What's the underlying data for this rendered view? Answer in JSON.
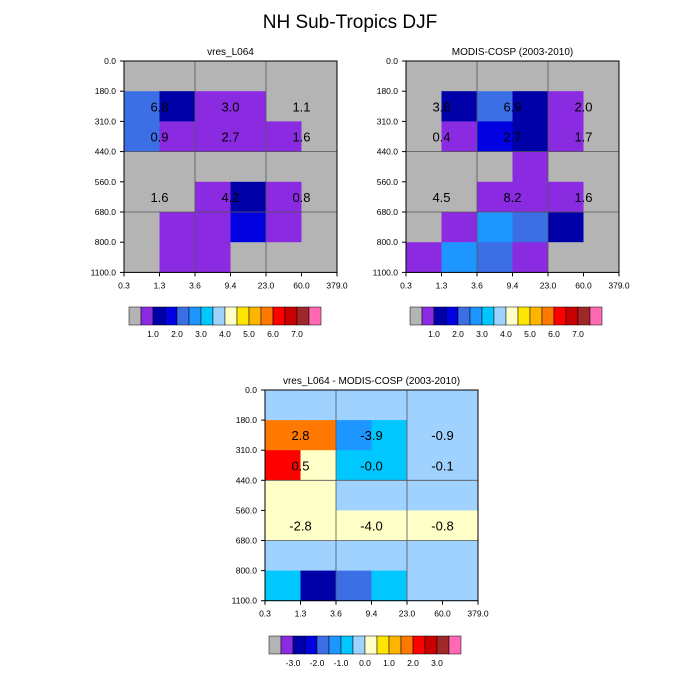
{
  "page_title": "NH Sub-Tropics DJF",
  "palette": [
    "#b4b4b4",
    "#8a2be2",
    "#0000a8",
    "#0000e0",
    "#3c6ee6",
    "#1e96ff",
    "#00c8ff",
    "#a0d2ff",
    "#ffffc8",
    "#ffe600",
    "#ffb400",
    "#ff7800",
    "#ff0000",
    "#c80000",
    "#a02828",
    "#ff69b4"
  ],
  "chart_data": [
    {
      "type": "heatmap",
      "title": "vres_L064",
      "x_ticks": [
        "0.3",
        "1.3",
        "3.6",
        "9.4",
        "23.0",
        "60.0",
        "379.0"
      ],
      "y_ticks": [
        "0.0",
        "180.0",
        "310.0",
        "440.0",
        "560.0",
        "680.0",
        "800.0",
        "1100.0"
      ],
      "grid": true,
      "cells": [
        [
          0,
          0,
          0,
          0,
          0,
          0
        ],
        [
          4,
          2,
          1,
          1,
          0,
          0
        ],
        [
          4,
          1,
          1,
          1,
          1,
          0
        ],
        [
          0,
          0,
          0,
          0,
          0,
          0
        ],
        [
          0,
          0,
          1,
          2,
          1,
          0
        ],
        [
          0,
          1,
          1,
          3,
          1,
          0
        ],
        [
          0,
          1,
          1,
          0,
          0,
          0
        ]
      ],
      "labels": [
        "6.8",
        "3.0",
        "1.1",
        "0.9",
        "2.7",
        "1.6",
        "1.6",
        "4.2",
        "0.8"
      ],
      "colorbar": {
        "labels": [
          "1.0",
          "2.0",
          "3.0",
          "4.0",
          "5.0",
          "6.0",
          "7.0"
        ],
        "from": 0
      }
    },
    {
      "type": "heatmap",
      "title": "MODIS-COSP (2003-2010)",
      "x_ticks": [
        "0.3",
        "1.3",
        "3.6",
        "9.4",
        "23.0",
        "60.0",
        "379.0"
      ],
      "y_ticks": [
        "0.0",
        "180.0",
        "310.0",
        "440.0",
        "560.0",
        "680.0",
        "800.0",
        "1100.0"
      ],
      "grid": true,
      "cells": [
        [
          0,
          0,
          0,
          0,
          0,
          0
        ],
        [
          0,
          2,
          4,
          2,
          1,
          0
        ],
        [
          0,
          1,
          3,
          2,
          1,
          0
        ],
        [
          0,
          0,
          0,
          1,
          0,
          0
        ],
        [
          0,
          0,
          1,
          1,
          1,
          0
        ],
        [
          0,
          1,
          5,
          4,
          2,
          0
        ],
        [
          1,
          5,
          4,
          1,
          0,
          0
        ]
      ],
      "labels": [
        "3.8",
        "6.9",
        "2.0",
        "0.4",
        "2.7",
        "1.7",
        "4.5",
        "8.2",
        "1.6"
      ],
      "colorbar": {
        "labels": [
          "1.0",
          "2.0",
          "3.0",
          "4.0",
          "5.0",
          "6.0",
          "7.0"
        ],
        "from": 0
      }
    },
    {
      "type": "heatmap",
      "title": "vres_L064 - MODIS-COSP (2003-2010)",
      "x_ticks": [
        "0.3",
        "1.3",
        "3.6",
        "9.4",
        "23.0",
        "60.0",
        "379.0"
      ],
      "y_ticks": [
        "0.0",
        "180.0",
        "310.0",
        "440.0",
        "560.0",
        "680.0",
        "800.0",
        "1100.0"
      ],
      "grid": true,
      "cells": [
        [
          7,
          7,
          7,
          7,
          7,
          7
        ],
        [
          11,
          11,
          5,
          6,
          7,
          7
        ],
        [
          12,
          8,
          6,
          6,
          7,
          7
        ],
        [
          8,
          8,
          7,
          7,
          7,
          7
        ],
        [
          8,
          8,
          8,
          8,
          8,
          8
        ],
        [
          7,
          7,
          7,
          7,
          7,
          7
        ],
        [
          6,
          2,
          4,
          6,
          7,
          7
        ]
      ],
      "labels": [
        "2.8",
        "-3.9",
        "-0.9",
        "0.5",
        "-0.0",
        "-0.1",
        "-2.8",
        "-4.0",
        "-0.8"
      ],
      "colorbar": {
        "labels": [
          "-3.0",
          "-2.0",
          "-1.0",
          "0.0",
          "1.0",
          "2.0",
          "3.0"
        ],
        "from": 1
      }
    }
  ]
}
